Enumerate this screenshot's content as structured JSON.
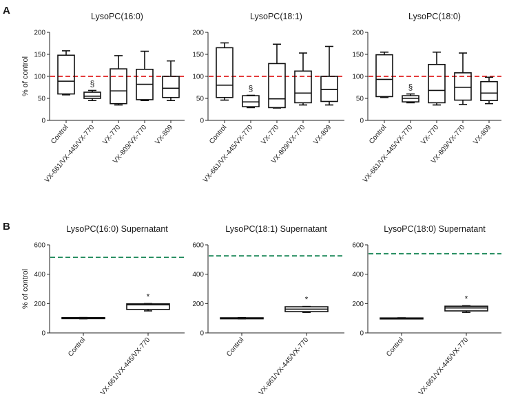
{
  "panels": [
    {
      "letter": "A"
    },
    {
      "letter": "B"
    }
  ],
  "chart_data": [
    {
      "type": "box",
      "panel": "A",
      "title": "LysoPC(16:0)",
      "ylabel": "% of control",
      "ylim": [
        0,
        200
      ],
      "yticks": [
        0,
        50,
        100,
        150,
        200
      ],
      "reference_line": {
        "value": 100,
        "color": "#e02020",
        "style": "dashed"
      },
      "categories": [
        "Control",
        "VX-661/VX-445/VX-770",
        "VX-770",
        "VX-809/VX-770",
        "VX-809"
      ],
      "boxes": [
        {
          "min": 58,
          "q1": 60,
          "median": 89,
          "q3": 148,
          "max": 158,
          "annotation": ""
        },
        {
          "min": 45,
          "q1": 50,
          "median": 55,
          "q3": 64,
          "max": 68,
          "annotation": "§"
        },
        {
          "min": 35,
          "q1": 38,
          "median": 67,
          "q3": 117,
          "max": 147,
          "annotation": ""
        },
        {
          "min": 45,
          "q1": 47,
          "median": 82,
          "q3": 116,
          "max": 157,
          "annotation": ""
        },
        {
          "min": 45,
          "q1": 52,
          "median": 73,
          "q3": 100,
          "max": 135,
          "annotation": ""
        }
      ]
    },
    {
      "type": "box",
      "panel": "A",
      "title": "LysoPC(18:1)",
      "ylabel": "",
      "ylim": [
        0,
        200
      ],
      "yticks": [
        0,
        50,
        100,
        150,
        200
      ],
      "reference_line": {
        "value": 100,
        "color": "#e02020",
        "style": "dashed"
      },
      "categories": [
        "Control",
        "VX-661/VX-445/VX-770",
        "VX-770",
        "VX-809/VX-770",
        "VX-809"
      ],
      "boxes": [
        {
          "min": 46,
          "q1": 52,
          "median": 80,
          "q3": 165,
          "max": 176,
          "annotation": ""
        },
        {
          "min": 29,
          "q1": 31,
          "median": 42,
          "q3": 56,
          "max": 57,
          "annotation": "§"
        },
        {
          "min": 28,
          "q1": 29,
          "median": 49,
          "q3": 129,
          "max": 173,
          "annotation": ""
        },
        {
          "min": 35,
          "q1": 40,
          "median": 62,
          "q3": 112,
          "max": 153,
          "annotation": ""
        },
        {
          "min": 35,
          "q1": 43,
          "median": 70,
          "q3": 100,
          "max": 168,
          "annotation": ""
        }
      ]
    },
    {
      "type": "box",
      "panel": "A",
      "title": "LysoPC(18:0)",
      "ylabel": "",
      "ylim": [
        0,
        200
      ],
      "yticks": [
        0,
        50,
        100,
        150,
        200
      ],
      "reference_line": {
        "value": 100,
        "color": "#e02020",
        "style": "dashed"
      },
      "categories": [
        "Control",
        "VX-661/VX-445/VX-770",
        "VX-770",
        "VX-809/VX-770",
        "VX-809"
      ],
      "boxes": [
        {
          "min": 52,
          "q1": 54,
          "median": 93,
          "q3": 149,
          "max": 155,
          "annotation": ""
        },
        {
          "min": 40,
          "q1": 42,
          "median": 50,
          "q3": 56,
          "max": 60,
          "annotation": "§"
        },
        {
          "min": 35,
          "q1": 40,
          "median": 68,
          "q3": 127,
          "max": 155,
          "annotation": ""
        },
        {
          "min": 36,
          "q1": 46,
          "median": 75,
          "q3": 108,
          "max": 153,
          "annotation": ""
        },
        {
          "min": 38,
          "q1": 45,
          "median": 62,
          "q3": 88,
          "max": 98,
          "annotation": ""
        }
      ]
    },
    {
      "type": "box",
      "panel": "B",
      "title": "LysoPC(16:0) Supernatant",
      "ylabel": "% of control",
      "ylim": [
        0,
        600
      ],
      "yticks": [
        0,
        200,
        400,
        600
      ],
      "reference_line": {
        "value": 515,
        "color": "#1f8a5b",
        "style": "dashed"
      },
      "categories": [
        "Control",
        "VX-661/VX-445/VX-770"
      ],
      "boxes": [
        {
          "min": 96,
          "q1": 97,
          "median": 100,
          "q3": 104,
          "max": 105,
          "annotation": ""
        },
        {
          "min": 150,
          "q1": 160,
          "median": 192,
          "q3": 198,
          "max": 200,
          "annotation": "*"
        }
      ]
    },
    {
      "type": "box",
      "panel": "B",
      "title": "LysoPC(18:1) Supernatant",
      "ylabel": "",
      "ylim": [
        0,
        600
      ],
      "yticks": [
        0,
        200,
        400,
        600
      ],
      "reference_line": {
        "value": 525,
        "color": "#1f8a5b",
        "style": "dashed"
      },
      "categories": [
        "Control",
        "VX-661/VX-445/VX-770"
      ],
      "boxes": [
        {
          "min": 96,
          "q1": 97,
          "median": 100,
          "q3": 103,
          "max": 104,
          "annotation": ""
        },
        {
          "min": 140,
          "q1": 145,
          "median": 162,
          "q3": 178,
          "max": 180,
          "annotation": "*"
        }
      ]
    },
    {
      "type": "box",
      "panel": "B",
      "title": "LysoPC(18:0) Supernatant",
      "ylabel": "",
      "ylim": [
        0,
        600
      ],
      "yticks": [
        0,
        200,
        400,
        600
      ],
      "reference_line": {
        "value": 540,
        "color": "#1f8a5b",
        "style": "dashed"
      },
      "categories": [
        "Control",
        "VX-661/VX-445/VX-770"
      ],
      "boxes": [
        {
          "min": 97,
          "q1": 98,
          "median": 100,
          "q3": 102,
          "max": 103,
          "annotation": ""
        },
        {
          "min": 140,
          "q1": 150,
          "median": 170,
          "q3": 182,
          "max": 185,
          "annotation": "*"
        }
      ]
    }
  ]
}
